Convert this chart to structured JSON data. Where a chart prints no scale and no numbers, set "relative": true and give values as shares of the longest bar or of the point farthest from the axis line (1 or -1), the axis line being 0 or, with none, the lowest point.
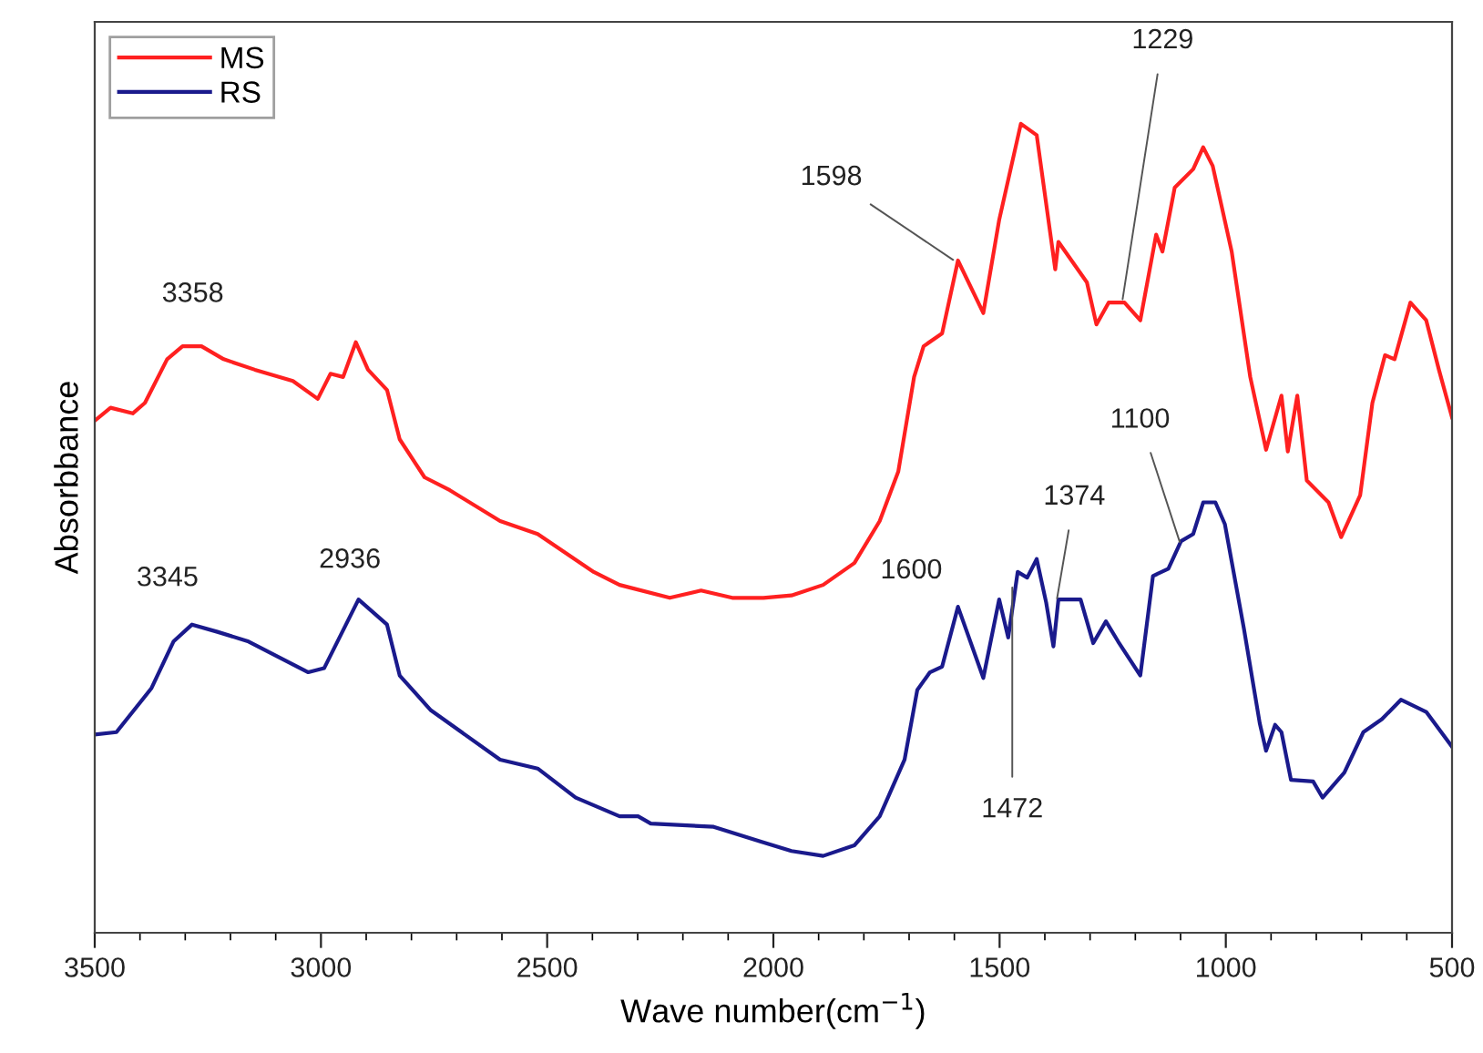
{
  "chart_data": {
    "type": "line",
    "relative": true,
    "xlabel": "Wave number(cm$^{−1}$)",
    "ylabel": "Absorbbance",
    "xlim": [
      3500,
      500
    ],
    "xticks": [
      3500,
      3000,
      2500,
      2000,
      1500,
      1000,
      500
    ],
    "legend": "top left",
    "grid": false,
    "series": [
      {
        "name": "MS",
        "color": "#ff2020",
        "x": [
          3500,
          3465,
          3416,
          3389,
          3340,
          3306,
          3264,
          3215,
          3146,
          3062,
          3007,
          2979,
          2951,
          2923,
          2896,
          2854,
          2826,
          2771,
          2715,
          2604,
          2521,
          2397,
          2340,
          2229,
          2160,
          2091,
          2022,
          1960,
          1890,
          1821,
          1765,
          1724,
          1689,
          1668,
          1627,
          1592,
          1536,
          1501,
          1453,
          1418,
          1377,
          1370,
          1307,
          1286,
          1259,
          1224,
          1189,
          1154,
          1140,
          1113,
          1072,
          1050,
          1029,
          987,
          946,
          911,
          877,
          863,
          842,
          821,
          773,
          745,
          703,
          676,
          648,
          627,
          592,
          557,
          529,
          500
        ],
        "values": [
          0.633,
          0.649,
          0.642,
          0.655,
          0.709,
          0.725,
          0.725,
          0.709,
          0.696,
          0.682,
          0.66,
          0.691,
          0.687,
          0.73,
          0.696,
          0.671,
          0.61,
          0.563,
          0.547,
          0.509,
          0.493,
          0.446,
          0.43,
          0.414,
          0.423,
          0.414,
          0.414,
          0.417,
          0.43,
          0.457,
          0.509,
          0.57,
          0.687,
          0.725,
          0.741,
          0.831,
          0.766,
          0.881,
          1,
          0.986,
          0.82,
          0.854,
          0.804,
          0.752,
          0.779,
          0.779,
          0.757,
          0.863,
          0.842,
          0.921,
          0.944,
          0.971,
          0.948,
          0.842,
          0.687,
          0.597,
          0.664,
          0.595,
          0.664,
          0.559,
          0.532,
          0.489,
          0.541,
          0.655,
          0.714,
          0.709,
          0.779,
          0.757,
          0.696,
          0.637
        ]
      },
      {
        "name": "RS",
        "color": "#1a1a8c",
        "x": [
          3500,
          3452,
          3375,
          3326,
          3285,
          3229,
          3160,
          3028,
          2993,
          2917,
          2854,
          2826,
          2757,
          2604,
          2521,
          2437,
          2340,
          2299,
          2271,
          2132,
          2029,
          1960,
          1890,
          1821,
          1765,
          1710,
          1682,
          1654,
          1627,
          1592,
          1536,
          1501,
          1481,
          1460,
          1439,
          1418,
          1397,
          1381,
          1370,
          1321,
          1293,
          1265,
          1238,
          1189,
          1161,
          1127,
          1099,
          1072,
          1050,
          1023,
          1002,
          960,
          925,
          911,
          891,
          877,
          856,
          807,
          786,
          738,
          696,
          655,
          613,
          557,
          500
        ],
        "values": [
          0.245,
          0.248,
          0.302,
          0.36,
          0.381,
          0.372,
          0.36,
          0.322,
          0.327,
          0.412,
          0.381,
          0.318,
          0.275,
          0.214,
          0.203,
          0.167,
          0.144,
          0.144,
          0.135,
          0.131,
          0.113,
          0.101,
          0.095,
          0.108,
          0.144,
          0.214,
          0.3,
          0.322,
          0.329,
          0.403,
          0.315,
          0.412,
          0.365,
          0.446,
          0.439,
          0.462,
          0.408,
          0.354,
          0.412,
          0.412,
          0.358,
          0.385,
          0.36,
          0.318,
          0.441,
          0.45,
          0.484,
          0.493,
          0.532,
          0.532,
          0.505,
          0.376,
          0.259,
          0.225,
          0.257,
          0.248,
          0.189,
          0.187,
          0.167,
          0.198,
          0.248,
          0.264,
          0.288,
          0.273,
          0.23
        ]
      }
    ],
    "annotations": [
      {
        "text": "3358",
        "x": 3300,
        "y": 0.72
      },
      {
        "text": "3345",
        "x": 3300,
        "y": 0.375
      },
      {
        "text": "2936",
        "x": 2936,
        "y": 0.41
      },
      {
        "text": "1598",
        "x": 1598,
        "y": 0.83
      },
      {
        "text": "1229",
        "x": 1229,
        "y": 0.78
      },
      {
        "text": "1600",
        "x": 1600,
        "y": 0.4
      },
      {
        "text": "1472",
        "x": 1472,
        "y": 0.43
      },
      {
        "text": "1374",
        "x": 1374,
        "y": 0.41
      },
      {
        "text": "1100",
        "x": 1100,
        "y": 0.48
      }
    ]
  }
}
